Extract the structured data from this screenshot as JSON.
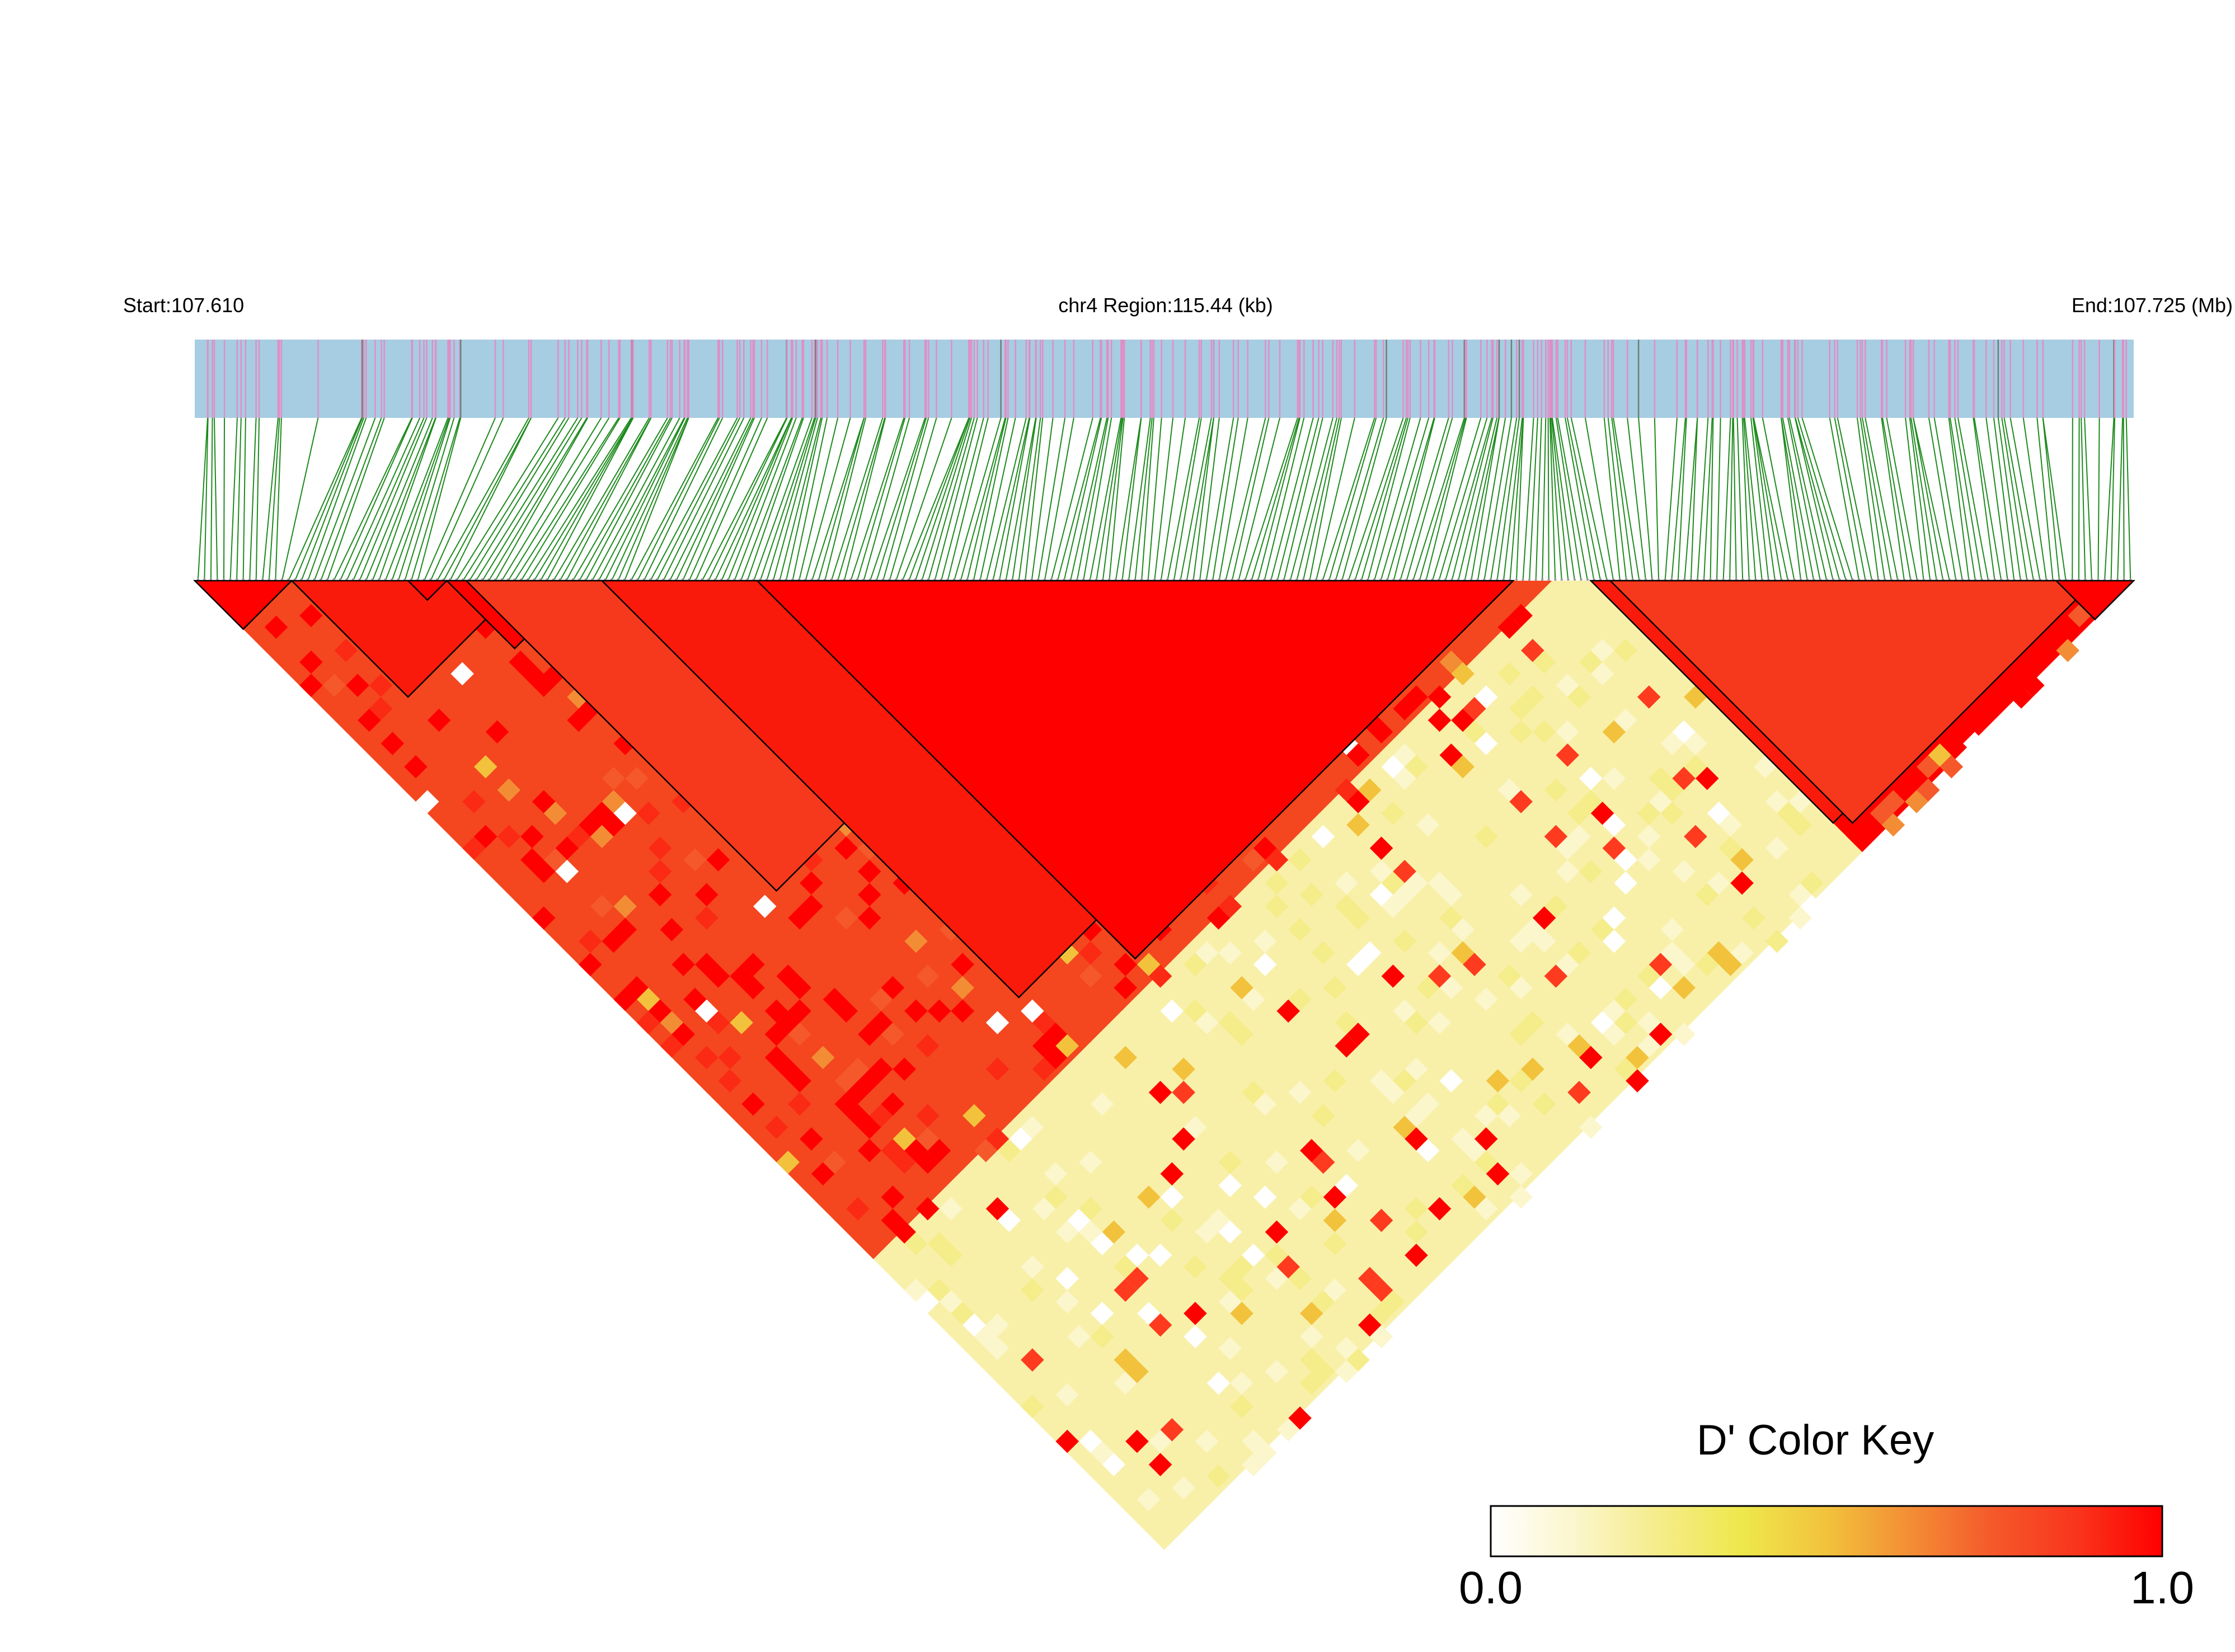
{
  "header": {
    "start_label": "Start:107.610",
    "region_label": "chr4 Region:115.44 (kb)",
    "end_label": "End:107.725 (Mb)"
  },
  "legend": {
    "title": "D' Color Key",
    "min_label": "0.0",
    "max_label": "1.0",
    "gradient_colors": [
      "#ffffff",
      "#fbf6cc",
      "#f5ec8a",
      "#eee84c",
      "#f2c23c",
      "#f38d35",
      "#f5582a",
      "#f9341c",
      "#ff0000"
    ]
  },
  "colors": {
    "track_background": "#a6cde2",
    "snp_tick": "#df8fc6",
    "snp_tick_dark": "#6f7f76",
    "connector": "#1d8a1d",
    "high_ld": "#ff0000",
    "low_ld": "#f8f0a8",
    "block_outline": "#000000"
  },
  "chart_data": {
    "type": "heatmap",
    "title": "chr4 Region:115.44 (kb)",
    "chromosome": "chr4",
    "start_mb": 107.61,
    "end_mb": 107.725,
    "region_kb": 115.44,
    "measure": "D'",
    "value_range": [
      0.0,
      1.0
    ],
    "blocks": [
      {
        "snp_range": [
          0.0,
          0.05
        ],
        "mean_dprime": 0.96
      },
      {
        "snp_range": [
          0.05,
          0.17
        ],
        "mean_dprime": 0.92
      },
      {
        "snp_range": [
          0.11,
          0.13
        ],
        "mean_dprime": 0.98
      },
      {
        "snp_range": [
          0.13,
          0.2
        ],
        "mean_dprime": 0.95
      },
      {
        "snp_range": [
          0.2,
          0.22
        ],
        "mean_dprime": 0.98
      },
      {
        "snp_range": [
          0.14,
          0.46
        ],
        "mean_dprime": 0.9
      },
      {
        "snp_range": [
          0.21,
          0.64
        ],
        "mean_dprime": 0.92
      },
      {
        "snp_range": [
          0.29,
          0.68
        ],
        "mean_dprime": 0.97
      },
      {
        "snp_range": [
          0.72,
          0.97
        ],
        "mean_dprime": 0.93
      },
      {
        "snp_range": [
          0.73,
          0.98
        ],
        "mean_dprime": 0.9
      },
      {
        "snp_range": [
          0.96,
          1.0
        ],
        "mean_dprime": 0.95
      }
    ],
    "cross_block_mean_dprime": 0.3
  }
}
